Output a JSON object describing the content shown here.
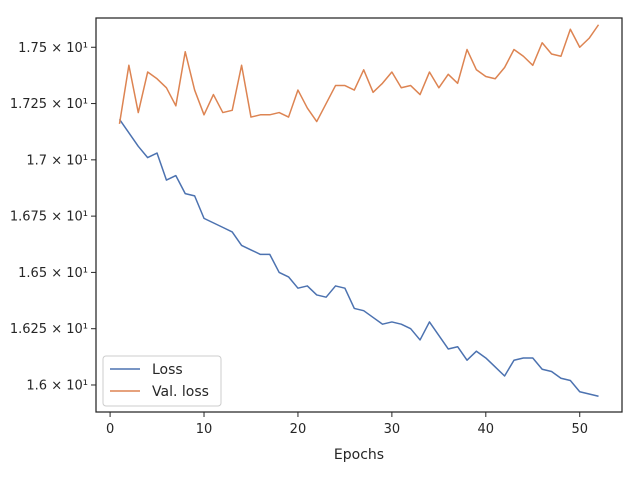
{
  "chart_data": {
    "type": "line",
    "xlabel": "Epochs",
    "ylabel": "",
    "title": "",
    "xlim": [
      -1.5,
      54.5
    ],
    "ylim": [
      15.88,
      17.63
    ],
    "x_ticks": [
      0,
      10,
      20,
      30,
      40,
      50
    ],
    "x_tick_labels": [
      "0",
      "10",
      "20",
      "30",
      "40",
      "50"
    ],
    "y_ticks": [
      16.0,
      16.25,
      16.5,
      16.75,
      17.0,
      17.25,
      17.5
    ],
    "y_tick_labels": [
      "1.6 × 10¹",
      "1.625 × 10¹",
      "1.65 × 10¹",
      "1.675 × 10¹",
      "1.7 × 10¹",
      "1.725 × 10¹",
      "1.75 × 10¹"
    ],
    "grid": false,
    "legend_position": "lower-left",
    "x": [
      1,
      2,
      3,
      4,
      5,
      6,
      7,
      8,
      9,
      10,
      11,
      12,
      13,
      14,
      15,
      16,
      17,
      18,
      19,
      20,
      21,
      22,
      23,
      24,
      25,
      26,
      27,
      28,
      29,
      30,
      31,
      32,
      33,
      34,
      35,
      36,
      37,
      38,
      39,
      40,
      41,
      42,
      43,
      44,
      45,
      46,
      47,
      48,
      49,
      50,
      51,
      52
    ],
    "series": [
      {
        "name": "Loss",
        "color": "#4c72b0",
        "values": [
          17.18,
          17.12,
          17.06,
          17.01,
          17.03,
          16.91,
          16.93,
          16.85,
          16.84,
          16.74,
          16.72,
          16.7,
          16.68,
          16.62,
          16.6,
          16.58,
          16.58,
          16.5,
          16.48,
          16.43,
          16.44,
          16.4,
          16.39,
          16.44,
          16.43,
          16.34,
          16.33,
          16.3,
          16.27,
          16.28,
          16.27,
          16.25,
          16.2,
          16.28,
          16.22,
          16.16,
          16.17,
          16.11,
          16.15,
          16.12,
          16.08,
          16.04,
          16.11,
          16.12,
          16.12,
          16.07,
          16.06,
          16.03,
          16.02,
          15.97,
          15.96,
          15.95
        ]
      },
      {
        "name": "Val. loss",
        "color": "#dd8452",
        "values": [
          17.16,
          17.42,
          17.21,
          17.39,
          17.36,
          17.32,
          17.24,
          17.48,
          17.31,
          17.2,
          17.29,
          17.21,
          17.22,
          17.42,
          17.19,
          17.2,
          17.2,
          17.21,
          17.19,
          17.31,
          17.23,
          17.17,
          17.25,
          17.33,
          17.33,
          17.31,
          17.4,
          17.3,
          17.34,
          17.39,
          17.32,
          17.33,
          17.29,
          17.39,
          17.32,
          17.38,
          17.34,
          17.49,
          17.4,
          17.37,
          17.36,
          17.41,
          17.49,
          17.46,
          17.42,
          17.52,
          17.47,
          17.46,
          17.58,
          17.5,
          17.54,
          17.6
        ]
      }
    ]
  }
}
